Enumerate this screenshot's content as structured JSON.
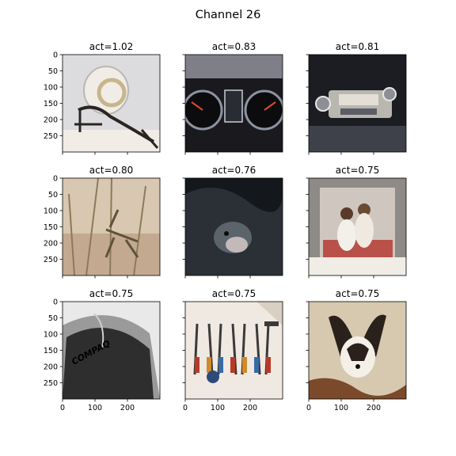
{
  "figure": {
    "title": "Channel 26"
  },
  "chart_data": {
    "type": "image-grid",
    "rows": 3,
    "cols": 3,
    "image_extent": [
      0,
      300
    ],
    "y_ticks": [
      0,
      50,
      100,
      150,
      200,
      250
    ],
    "x_ticks": [
      0,
      100,
      200
    ],
    "y_tick_rows": [
      0,
      1,
      2
    ],
    "x_tick_row": 2,
    "panels": [
      {
        "title": "act=1.02",
        "value": 1.02,
        "icon": "lace-bonnet-photo",
        "palette": [
          "#dcdcdf",
          "#b9b7b4",
          "#2a2522",
          "#f1ede6"
        ]
      },
      {
        "title": "act=0.83",
        "value": 0.83,
        "icon": "car-dashboard-photo",
        "palette": [
          "#1a1a1e",
          "#4a4e58",
          "#8d93a0",
          "#c7ccd6"
        ]
      },
      {
        "title": "act=0.81",
        "value": 0.81,
        "icon": "car-radio-photo",
        "palette": [
          "#1c1d22",
          "#3e414a",
          "#b9b7b0",
          "#e3dfd6"
        ]
      },
      {
        "title": "act=0.80",
        "value": 0.8,
        "icon": "grasshopper-photo",
        "palette": [
          "#d8c7b1",
          "#c3a98f",
          "#8c7a5a",
          "#5e513d"
        ]
      },
      {
        "title": "act=0.76",
        "value": 0.76,
        "icon": "monkey-photo",
        "palette": [
          "#14171b",
          "#2a3036",
          "#5b636b",
          "#9aa2a9"
        ]
      },
      {
        "title": "act=0.75",
        "value": 0.75,
        "icon": "children-room-photo",
        "palette": [
          "#8d8a87",
          "#cfc7bf",
          "#b9504a",
          "#f0ece6"
        ]
      },
      {
        "title": "act=0.75",
        "value": 0.75,
        "icon": "computer-mouse-photo",
        "palette": [
          "#e9e9e9",
          "#9a9a9a",
          "#2e2e2e",
          "#111111"
        ],
        "logo_text": "COMPAQ"
      },
      {
        "title": "act=0.75",
        "value": 0.75,
        "icon": "tools-photo",
        "palette": [
          "#efe9e2",
          "#d9cfc3",
          "#b83a26",
          "#3a3a3a"
        ]
      },
      {
        "title": "act=0.75",
        "value": 0.75,
        "icon": "papillon-dog-photo",
        "palette": [
          "#d7c9b0",
          "#b9a37f",
          "#2a211c",
          "#f4efe7"
        ]
      }
    ]
  }
}
